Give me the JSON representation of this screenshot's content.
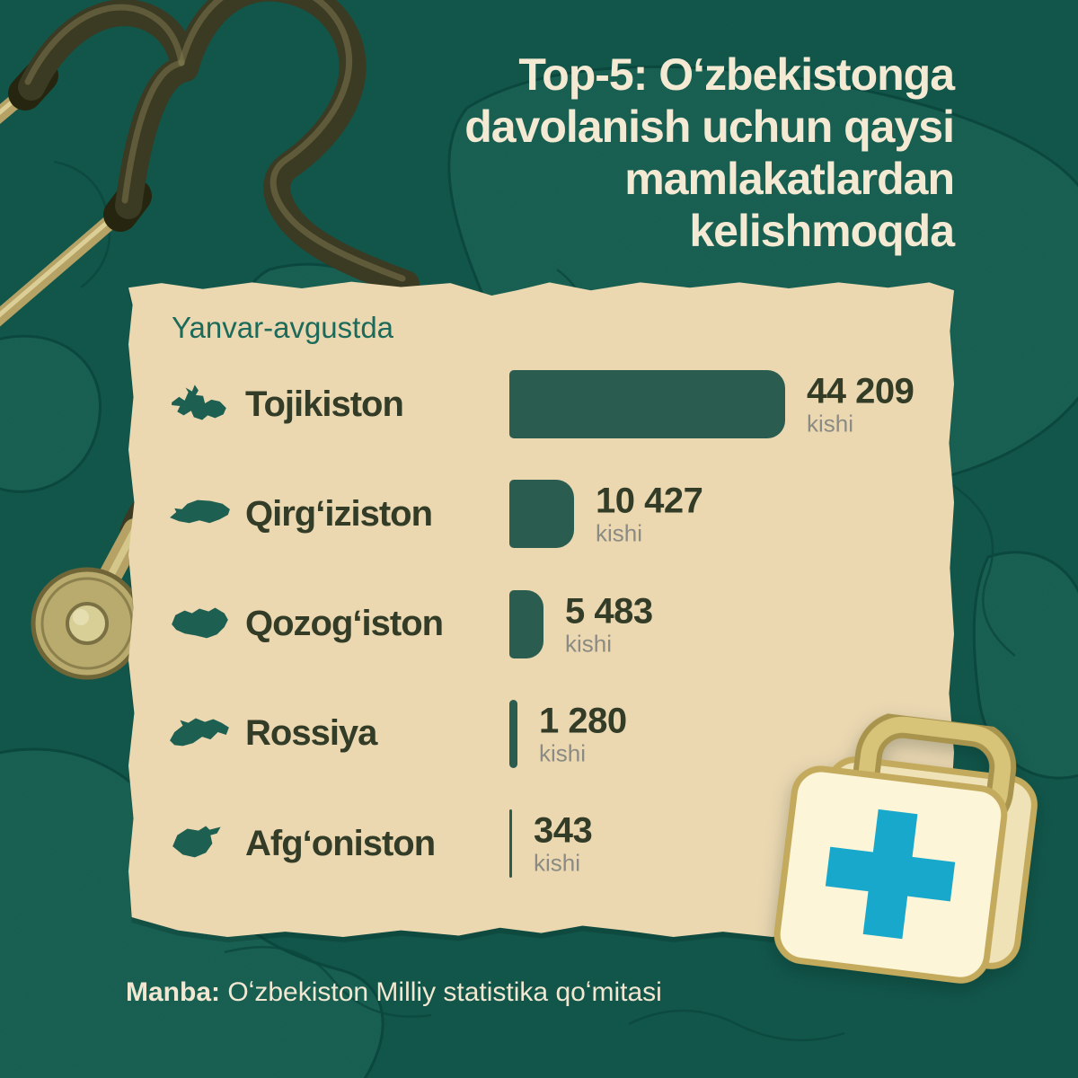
{
  "title": {
    "lines": [
      "Top-5: Oʻzbekistonga",
      "davolanish uchun qaysi",
      "mamlakatlardan",
      "kelishmoqda"
    ]
  },
  "card": {
    "period_label": "Yanvar-avgustda",
    "unit_label": "kishi",
    "rows": [
      {
        "country": "Tojikiston",
        "value": "44 209",
        "icon": "tajikistan-map-icon"
      },
      {
        "country": "Qirgʻiziston",
        "value": "10 427",
        "icon": "kyrgyzstan-map-icon"
      },
      {
        "country": "Qozogʻiston",
        "value": "5 483",
        "icon": "kazakhstan-map-icon"
      },
      {
        "country": "Rossiya",
        "value": "1 280",
        "icon": "russia-map-icon"
      },
      {
        "country": "Afgʻoniston",
        "value": "343",
        "icon": "afghanistan-map-icon"
      }
    ]
  },
  "source": {
    "label": "Manba:",
    "text": "Oʻzbekiston Milliy statistika qoʻmitasi"
  },
  "colors": {
    "background": "#135a4e",
    "map_patch": "#1d685a",
    "map_line": "#0c4b40",
    "card": "#ebd8b1",
    "bar": "#2a5d50",
    "label_dark": "#333c27",
    "unit_gray": "#8b8b84",
    "period_teal": "#1c6a5a",
    "title_cream": "#f4ead3",
    "icon_teal": "#1d5f51",
    "kit_body": "#fcf5d7",
    "kit_outline": "#c3aa5c",
    "kit_handle": "#d8c478",
    "cross_cyan": "#18a8cc"
  },
  "chart_data": {
    "type": "bar",
    "orientation": "horizontal",
    "title": "Top-5: Oʻzbekistonga davolanish uchun qaysi mamlakatlardan kelishmoqda",
    "subtitle": "Yanvar-avgustda",
    "categories": [
      "Tojikiston",
      "Qirgʻiziston",
      "Qozogʻiston",
      "Rossiya",
      "Afgʻoniston"
    ],
    "values": [
      44209,
      10427,
      5483,
      1280,
      343
    ],
    "unit": "kishi",
    "xlim": [
      0,
      44209
    ],
    "grid": false,
    "legend": false,
    "source": "Oʻzbekiston Milliy statistika qoʻmitasi"
  }
}
